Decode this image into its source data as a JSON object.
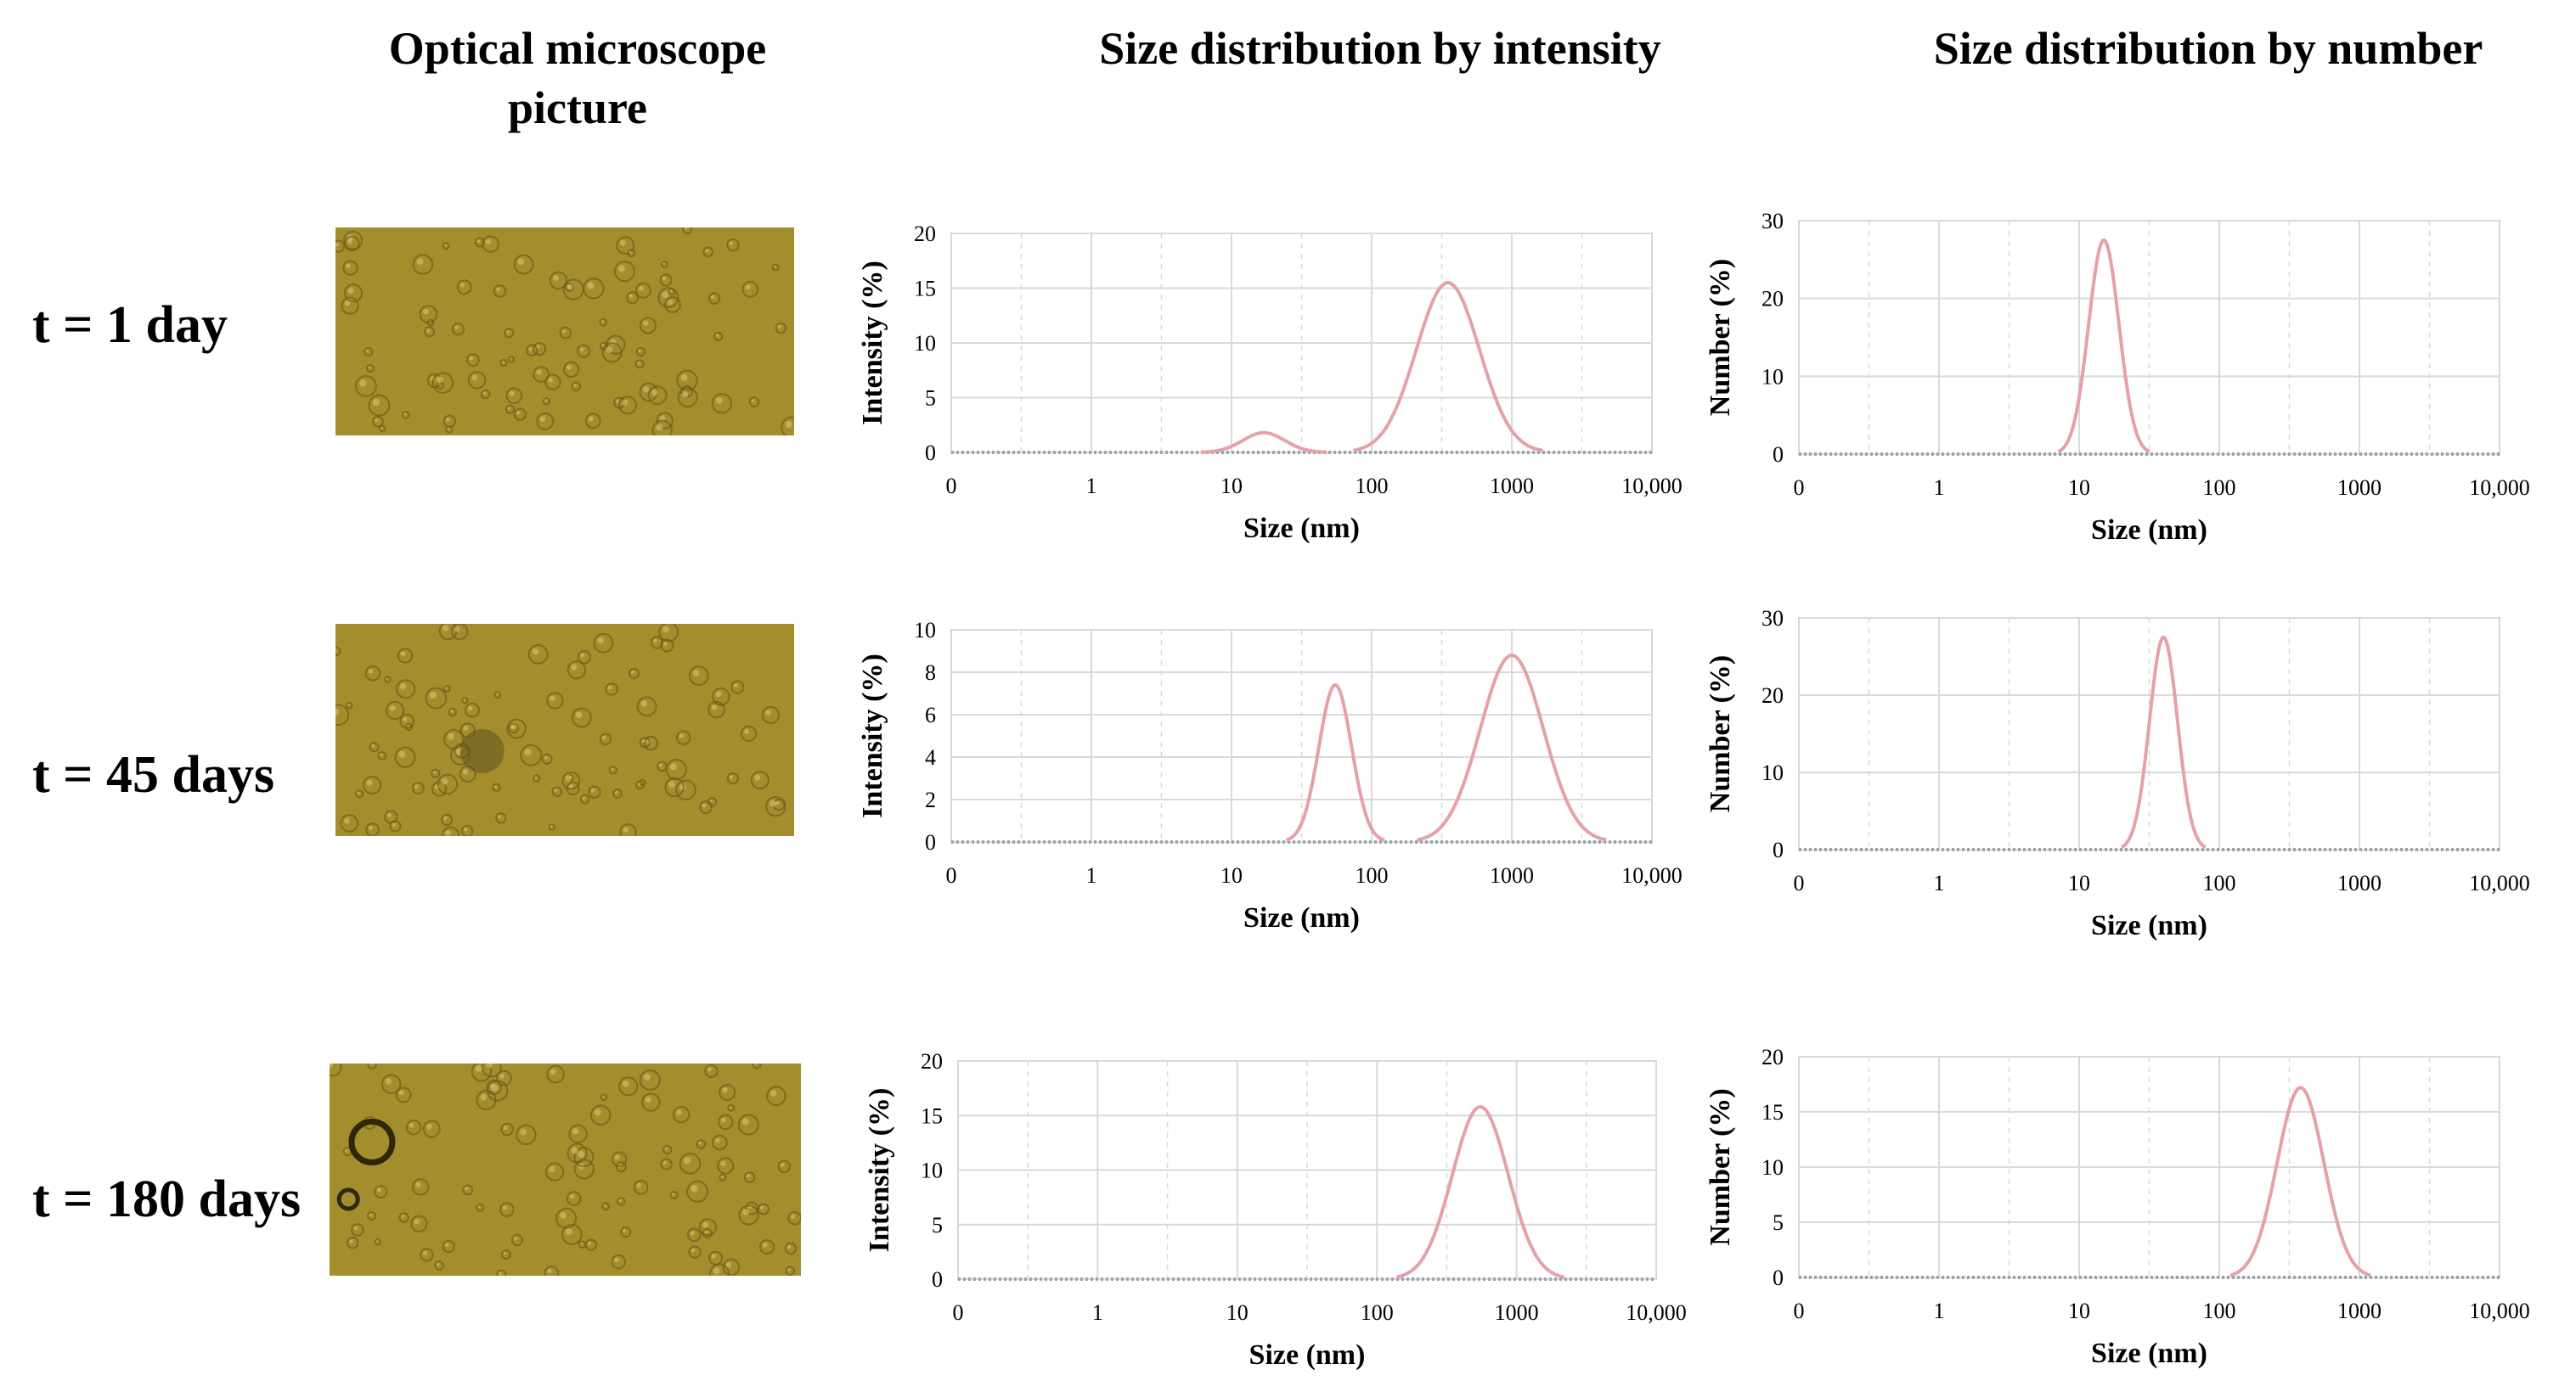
{
  "header": {
    "col1_title": "Optical microscope\npicture",
    "col2_title": "Size  distribution by intensity",
    "col3_title": "Size  distribution by number"
  },
  "rows": [
    {
      "label": "t = 1 day"
    },
    {
      "label": "t = 45 days"
    },
    {
      "label": "t = 180 days"
    }
  ],
  "colors": {
    "curve": "#E6A0A8",
    "baseline": "#9AA6AE",
    "grid": "#D9D9D9",
    "micro_bg": "#A48D2C",
    "micro_particle": "#6F5E1C"
  },
  "chart_data": [
    {
      "type": "line",
      "xscale": "log",
      "xlabel": "Size (nm)",
      "ylabel": "Intensity (%)",
      "x_tick_labels": [
        "0",
        "1",
        "10",
        "100",
        "1000",
        "10,000"
      ],
      "y_ticks": [
        0,
        5,
        10,
        15,
        20
      ],
      "ylim": [
        0,
        20
      ],
      "series": [
        {
          "name": "t = 1 day",
          "peaks": [
            {
              "center_nm": 17,
              "height": 1.8,
              "halfwidth_decades": 0.18
            },
            {
              "center_nm": 350,
              "height": 15.5,
              "halfwidth_decades": 0.27
            }
          ]
        }
      ]
    },
    {
      "type": "line",
      "xscale": "log",
      "xlabel": "Size (nm)",
      "ylabel": "Number (%)",
      "x_tick_labels": [
        "0",
        "1",
        "10",
        "100",
        "1000",
        "10,000"
      ],
      "y_ticks": [
        0,
        10,
        20,
        30
      ],
      "ylim": [
        0,
        30
      ],
      "series": [
        {
          "name": "t = 1 day",
          "peaks": [
            {
              "center_nm": 15,
              "height": 27.5,
              "halfwidth_decades": 0.13
            }
          ]
        }
      ]
    },
    {
      "type": "line",
      "xscale": "log",
      "xlabel": "Size (nm)",
      "ylabel": "Intensity (%)",
      "x_tick_labels": [
        "0",
        "1",
        "10",
        "100",
        "1000",
        "10,000"
      ],
      "y_ticks": [
        0,
        2,
        4,
        6,
        8,
        10
      ],
      "ylim": [
        0,
        10
      ],
      "series": [
        {
          "name": "t = 45 days",
          "peaks": [
            {
              "center_nm": 55,
              "height": 7.4,
              "halfwidth_decades": 0.14
            },
            {
              "center_nm": 1000,
              "height": 8.8,
              "halfwidth_decades": 0.27
            }
          ]
        }
      ]
    },
    {
      "type": "line",
      "xscale": "log",
      "xlabel": "Size (nm)",
      "ylabel": "Number (%)",
      "x_tick_labels": [
        "0",
        "1",
        "10",
        "100",
        "1000",
        "10,000"
      ],
      "y_ticks": [
        0,
        10,
        20,
        30
      ],
      "ylim": [
        0,
        30
      ],
      "series": [
        {
          "name": "t = 45 days",
          "peaks": [
            {
              "center_nm": 40,
              "height": 27.5,
              "halfwidth_decades": 0.12
            }
          ]
        }
      ]
    },
    {
      "type": "line",
      "xscale": "log",
      "xlabel": "Size (nm)",
      "ylabel": "Intensity (%)",
      "x_tick_labels": [
        "0",
        "1",
        "10",
        "100",
        "1000",
        "10,000"
      ],
      "y_ticks": [
        0,
        5,
        10,
        15,
        20
      ],
      "ylim": [
        0,
        20
      ],
      "series": [
        {
          "name": "t = 180 days",
          "peaks": [
            {
              "center_nm": 550,
              "height": 15.8,
              "halfwidth_decades": 0.24
            }
          ]
        }
      ]
    },
    {
      "type": "line",
      "xscale": "log",
      "xlabel": "Size (nm)",
      "ylabel": "Number (%)",
      "x_tick_labels": [
        "0",
        "1",
        "10",
        "100",
        "1000",
        "10,000"
      ],
      "y_ticks": [
        0,
        5,
        10,
        15,
        20
      ],
      "ylim": [
        0,
        20
      ],
      "series": [
        {
          "name": "t = 180 days",
          "peaks": [
            {
              "center_nm": 380,
              "height": 17.2,
              "halfwidth_decades": 0.2
            }
          ]
        }
      ]
    }
  ]
}
